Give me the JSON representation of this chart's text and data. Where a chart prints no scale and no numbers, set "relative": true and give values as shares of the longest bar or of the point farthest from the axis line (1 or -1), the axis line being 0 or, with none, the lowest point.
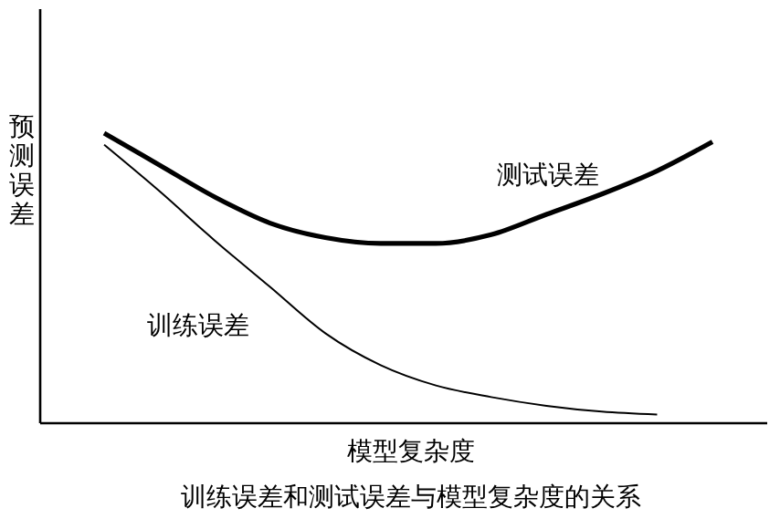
{
  "chart_data": {
    "type": "line",
    "relative": true,
    "title": "训练误差和测试误差与模型复杂度的关系",
    "xlabel": "模型复杂度",
    "ylabel": "预测误差",
    "categories": [
      null,
      null,
      null,
      null,
      null,
      null,
      null,
      null,
      null,
      null,
      null,
      null
    ],
    "marker": "none",
    "series": [
      {
        "name": "测试误差",
        "color": "#000000",
        "values": [
          1,
          0.89,
          0.78,
          0.69,
          0.64,
          0.62,
          0.62,
          0.65,
          0.72,
          0.79,
          0.87,
          0.97
        ]
      },
      {
        "name": "训练误差",
        "color": "#000000",
        "values": [
          0.96,
          0.8,
          0.63,
          0.47,
          0.31,
          0.2,
          0.13,
          0.09,
          0.06,
          0.04,
          0.03,
          null
        ]
      }
    ]
  }
}
